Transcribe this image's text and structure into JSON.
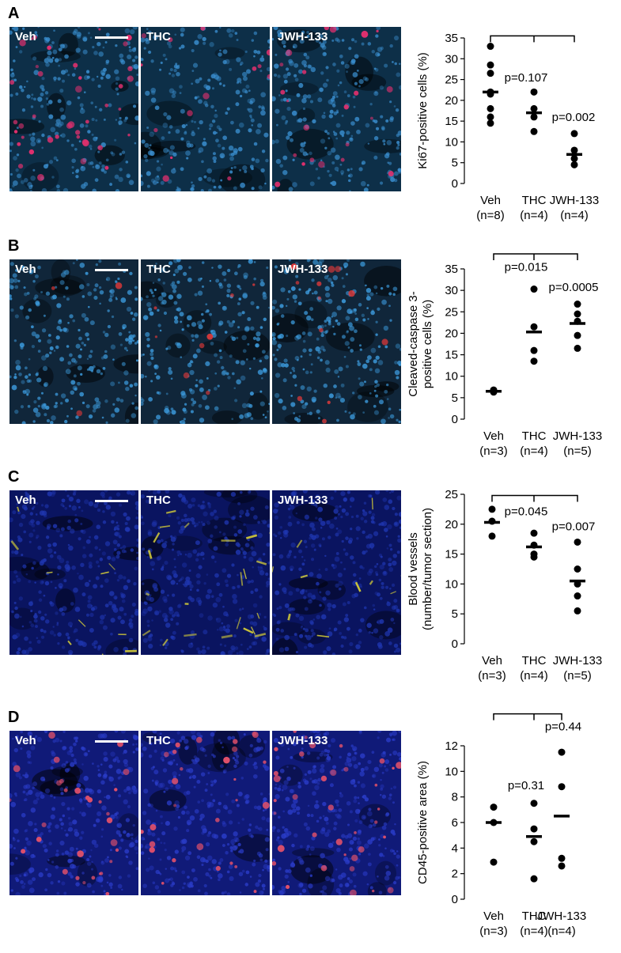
{
  "panels": [
    {
      "letter": "A",
      "image_labels": [
        "Veh",
        "THC",
        "JWH-133"
      ],
      "image_theme": "ki67",
      "chart_data": {
        "type": "scatter",
        "ylabel": "Ki67-positive cells (%)",
        "ylabel2": "",
        "yticks": [
          0,
          5,
          10,
          15,
          20,
          25,
          30,
          35
        ],
        "ylim": [
          0,
          35
        ],
        "categories": [
          {
            "name": "Veh",
            "n": "(n=8)",
            "points": [
              33,
              28.5,
              26.5,
              22,
              21.5,
              18,
              16,
              14.5
            ],
            "mean": 22
          },
          {
            "name": "THC",
            "n": "(n=4)",
            "points": [
              22,
              18,
              16,
              12.5
            ],
            "mean": 17
          },
          {
            "name": "JWH-133",
            "n": "(n=4)",
            "points": [
              12,
              8,
              6,
              4.5
            ],
            "mean": 7
          }
        ],
        "annotations": [
          {
            "label": "p=0.107",
            "target": 1,
            "label_y": 24.5
          },
          {
            "label": "p=0.002",
            "target": 2,
            "label_y": 15
          }
        ],
        "bracket_y": 35.5
      }
    },
    {
      "letter": "B",
      "image_labels": [
        "Veh",
        "THC",
        "JWH-133"
      ],
      "image_theme": "caspase",
      "chart_data": {
        "type": "scatter",
        "ylabel": "Cleaved-caspase 3-",
        "ylabel2": "positive cells (%)",
        "yticks": [
          0,
          5,
          10,
          15,
          20,
          25,
          30,
          35
        ],
        "ylim": [
          0,
          35
        ],
        "categories": [
          {
            "name": "Veh",
            "n": "(n=3)",
            "points": [
              6.8,
              6.5,
              6.3
            ],
            "mean": 6.5
          },
          {
            "name": "THC",
            "n": "(n=4)",
            "points": [
              30.3,
              21.5,
              16,
              13.5
            ],
            "mean": 20.3
          },
          {
            "name": "JWH-133",
            "n": "(n=5)",
            "points": [
              26.8,
              24.5,
              22.8,
              19.5,
              16.5
            ],
            "mean": 22.3
          }
        ],
        "annotations": [
          {
            "label": "p=0.015",
            "target": 1,
            "label_y": 34.5
          },
          {
            "label": "p=0.0005",
            "target": 2,
            "label_y": 29.8
          }
        ],
        "bracket_y": 38.5
      }
    },
    {
      "letter": "C",
      "image_labels": [
        "Veh",
        "THC",
        "JWH-133"
      ],
      "image_theme": "vessels",
      "chart_data": {
        "type": "scatter",
        "ylabel": "Blood vessels",
        "ylabel2": "(number/tumor section)",
        "yticks": [
          0,
          5,
          10,
          15,
          20,
          25
        ],
        "ylim": [
          0,
          25
        ],
        "categories": [
          {
            "name": "Veh",
            "n": "(n=3)",
            "points": [
              22.5,
              20.5,
              18
            ],
            "mean": 20.3
          },
          {
            "name": "THC",
            "n": "(n=4)",
            "points": [
              18.5,
              16.5,
              15,
              14.5
            ],
            "mean": 16.2
          },
          {
            "name": "JWH-133",
            "n": "(n=5)",
            "points": [
              17,
              12.5,
              10,
              8,
              5.5
            ],
            "mean": 10.5
          }
        ],
        "annotations": [
          {
            "label": "p=0.045",
            "target": 1,
            "label_y": 21.5
          },
          {
            "label": "p=0.007",
            "target": 2,
            "label_y": 19
          }
        ],
        "bracket_y": 24.8
      }
    },
    {
      "letter": "D",
      "image_labels": [
        "Veh",
        "THC",
        "JWH-133"
      ],
      "image_theme": "cd45",
      "chart_data": {
        "type": "scatter",
        "ylabel": "CD45-positive area (%)",
        "ylabel2": "",
        "yticks": [
          0,
          2,
          4,
          6,
          8,
          10,
          12
        ],
        "ylim": [
          0,
          12
        ],
        "categories": [
          {
            "name": "Veh",
            "n": "(n=3)",
            "points": [
              7.2,
              6,
              2.9
            ],
            "mean": 6
          },
          {
            "name": "THC",
            "n": "(n=4)",
            "points": [
              7.5,
              5.5,
              4.5,
              1.6
            ],
            "mean": 4.9
          },
          {
            "name": "JWH-133",
            "n": "(n=4)",
            "points": [
              11.5,
              8.8,
              3.2,
              2.6
            ],
            "mean": 6.5
          }
        ],
        "annotations": [
          {
            "label": "p=0.31",
            "target": 1,
            "label_y": 8.6
          },
          {
            "label": "p=0.44",
            "target": 2,
            "label_y": 13.2
          }
        ],
        "bracket_y": 14.5
      }
    }
  ],
  "colors": {
    "ki67": {
      "bg": "#0d2f48",
      "nuclei": "#3a8fd0",
      "marker": "#e0306e"
    },
    "caspase": {
      "bg": "#10263a",
      "nuclei": "#3d9de0",
      "marker": "#e53a3a"
    },
    "vessels": {
      "bg": "#0a1460",
      "nuclei": "#1f36b0",
      "marker": "#c9c23a"
    },
    "cd45": {
      "bg": "#101a78",
      "nuclei": "#2a3cc8",
      "marker": "#e0506a"
    }
  }
}
